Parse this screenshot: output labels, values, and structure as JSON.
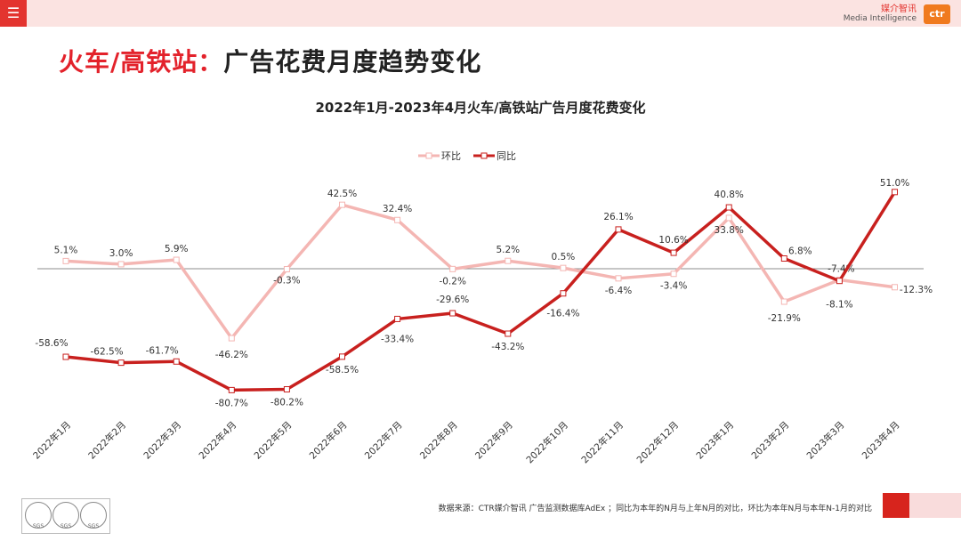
{
  "header": {
    "menu_icon": "hamburger-menu-icon",
    "brand_cn": "媒介智讯",
    "brand_en": "Media Intelligence",
    "brand_logo": "ctr",
    "colors": {
      "bar": "#fbe3e1",
      "accent": "#e3342f"
    }
  },
  "page": {
    "title_accent": "火车/高铁站：",
    "title_rest": "广告花费月度趋势变化"
  },
  "chart_data": {
    "type": "line",
    "title": "2022年1月-2023年4月火车/高铁站广告月度花费变化",
    "categories": [
      "2022年1月",
      "2022年2月",
      "2022年3月",
      "2022年4月",
      "2022年5月",
      "2022年6月",
      "2022年7月",
      "2022年8月",
      "2022年9月",
      "2022年10月",
      "2022年11月",
      "2022年12月",
      "2023年1月",
      "2023年2月",
      "2023年3月",
      "2023年4月"
    ],
    "series": [
      {
        "name": "环比",
        "color": "#f4b6b3",
        "values": [
          5.1,
          3.0,
          5.9,
          -46.2,
          -0.3,
          42.5,
          32.4,
          -0.2,
          5.2,
          0.5,
          -6.4,
          -3.4,
          33.8,
          -21.9,
          -7.4,
          -12.3
        ],
        "labels": [
          "5.1%",
          "3.0%",
          "5.9%",
          "-46.2%",
          "-0.3%",
          "42.5%",
          "32.4%",
          "-0.2%",
          "5.2%",
          "0.5%",
          "-6.4%",
          "-3.4%",
          "33.8%",
          "-21.9%",
          "-7.4%",
          "-12.3%"
        ]
      },
      {
        "name": "同比",
        "color": "#c8201e",
        "values": [
          -58.6,
          -62.5,
          -61.7,
          -80.7,
          -80.2,
          -58.5,
          -33.4,
          -29.6,
          -43.2,
          -16.4,
          26.1,
          10.6,
          40.8,
          6.8,
          -8.1,
          51.0
        ],
        "labels": [
          "-58.6%",
          "-62.5%",
          "-61.7%",
          "-80.7%",
          "-80.2%",
          "-58.5%",
          "-33.4%",
          "-29.6%",
          "-43.2%",
          "-16.4%",
          "26.1%",
          "10.6%",
          "40.8%",
          "6.8%",
          "-8.1%",
          "51.0%"
        ]
      }
    ],
    "legend_position": "top-center",
    "grid": false,
    "zero_line": true
  },
  "footer": {
    "source": "数据来源：CTR媒介智讯 广告监测数据库AdEx ；同比为本年的N月与上年N月的对比，环比为本年N月与本年N-1月的对比",
    "cert_label": "SGS"
  }
}
